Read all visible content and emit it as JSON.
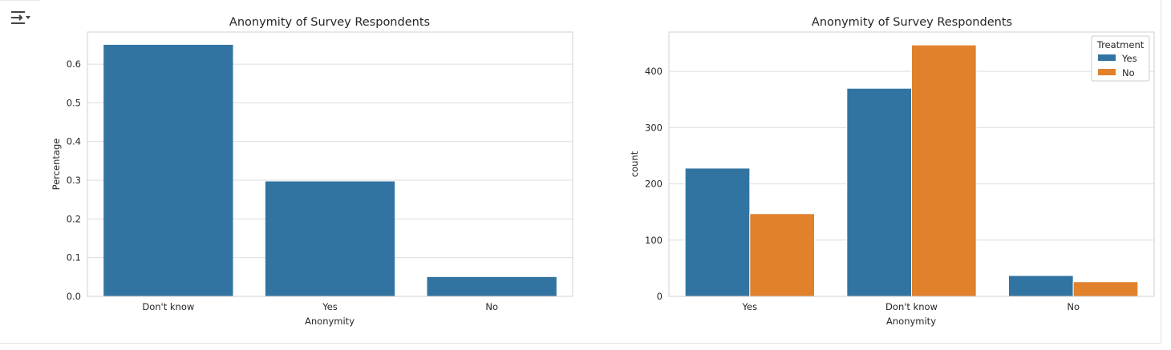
{
  "toolbar": {
    "icon": "output-collapse-icon"
  },
  "colors": {
    "blue": "#3274a1",
    "orange": "#e1812c"
  },
  "chart_data": [
    {
      "type": "bar",
      "title": "Anonymity of Survey Respondents",
      "xlabel": "Anonymity",
      "ylabel": "Percentage",
      "categories": [
        "Don't know",
        "Yes",
        "No"
      ],
      "values": [
        0.65,
        0.297,
        0.05
      ],
      "ylim": [
        0,
        0.683
      ],
      "yticks": [
        "0.0",
        "0.1",
        "0.2",
        "0.3",
        "0.4",
        "0.5",
        "0.6"
      ],
      "ytick_values": [
        0,
        0.1,
        0.2,
        0.3,
        0.4,
        0.5,
        0.6
      ],
      "grid": true
    },
    {
      "type": "bar",
      "title": "Anonymity of Survey Respondents",
      "xlabel": "Anonymity",
      "ylabel": "count",
      "categories": [
        "Yes",
        "Don't know",
        "No"
      ],
      "series": [
        {
          "name": "Yes",
          "values": [
            228,
            370,
            37
          ]
        },
        {
          "name": "No",
          "values": [
            147,
            447,
            26
          ]
        }
      ],
      "legend": {
        "title": "Treatment",
        "position": "top-right"
      },
      "ylim": [
        0,
        470
      ],
      "yticks": [
        "0",
        "100",
        "200",
        "300",
        "400"
      ],
      "ytick_values": [
        0,
        100,
        200,
        300,
        400
      ],
      "grid": true
    }
  ]
}
